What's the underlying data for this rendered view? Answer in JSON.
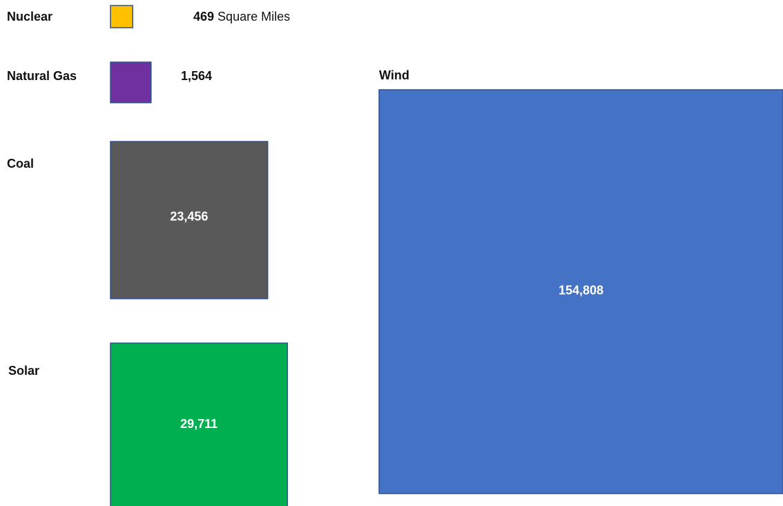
{
  "chart_data": {
    "type": "square",
    "categories": [
      "Nuclear",
      "Natural Gas",
      "Coal",
      "Solar",
      "Wind"
    ],
    "values": [
      469,
      1564,
      23456,
      29711,
      154808
    ],
    "value_labels": [
      "469",
      "1,564",
      "23,456",
      "29,711",
      "154,808"
    ],
    "unit": "Square Miles",
    "colors": [
      "#ffc000",
      "#7030a0",
      "#595959",
      "#00b050",
      "#4472c4"
    ]
  }
}
